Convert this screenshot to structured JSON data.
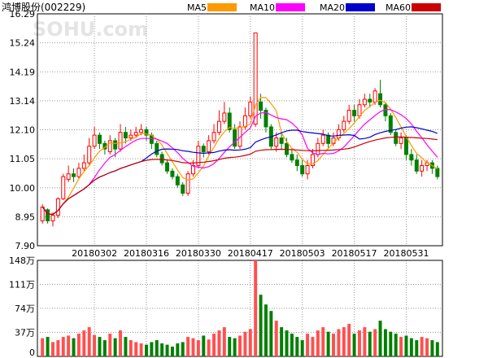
{
  "header": {
    "title": "鸿博股份(002229)",
    "watermark": "SOHU.com"
  },
  "legend": [
    {
      "name": "MA5",
      "color": "#ff9900"
    },
    {
      "name": "MA10",
      "color": "#ff00ff"
    },
    {
      "name": "MA20",
      "color": "#0000cc"
    },
    {
      "name": "MA60",
      "color": "#cc0000"
    }
  ],
  "chart_data": {
    "type": "candlestick",
    "price_axis": {
      "ylim": [
        7.9,
        16.29
      ],
      "ticks": [
        "16.29",
        "15.24",
        "14.19",
        "13.14",
        "12.10",
        "11.05",
        "10.00",
        "8.95",
        "7.90"
      ]
    },
    "volume_axis": {
      "ylim": [
        0,
        148
      ],
      "ticks": [
        "148万",
        "111万",
        "74万",
        "37万",
        "0"
      ]
    },
    "x_ticks": [
      {
        "label": "20180302",
        "index": 10
      },
      {
        "label": "20180316",
        "index": 20
      },
      {
        "label": "20180330",
        "index": 30
      },
      {
        "label": "20180417",
        "index": 40
      },
      {
        "label": "20180503",
        "index": 50
      },
      {
        "label": "20180517",
        "index": 60
      },
      {
        "label": "20180531",
        "index": 70
      }
    ],
    "ohlc": [
      [
        8.8,
        9.3,
        9.4,
        8.7
      ],
      [
        9.2,
        8.8,
        9.25,
        8.7
      ],
      [
        8.8,
        9.0,
        9.1,
        8.6
      ],
      [
        9.0,
        9.6,
        9.65,
        8.9
      ],
      [
        9.6,
        10.4,
        10.5,
        9.55
      ],
      [
        10.3,
        10.5,
        10.8,
        10.2
      ],
      [
        10.5,
        10.4,
        10.7,
        10.2
      ],
      [
        10.4,
        10.7,
        10.9,
        10.3
      ],
      [
        10.7,
        10.9,
        11.2,
        10.6
      ],
      [
        10.9,
        11.5,
        11.8,
        10.8
      ],
      [
        11.5,
        11.9,
        12.2,
        11.4
      ],
      [
        11.9,
        11.6,
        12.0,
        11.4
      ],
      [
        11.6,
        11.4,
        11.7,
        11.2
      ],
      [
        11.3,
        11.7,
        11.9,
        11.2
      ],
      [
        11.7,
        11.4,
        11.8,
        11.1
      ],
      [
        11.4,
        12.0,
        12.3,
        11.3
      ],
      [
        12.0,
        11.8,
        12.2,
        11.6
      ],
      [
        11.8,
        11.9,
        12.1,
        11.7
      ],
      [
        11.9,
        12.0,
        12.2,
        11.8
      ],
      [
        12.0,
        12.1,
        12.3,
        11.9
      ],
      [
        12.1,
        11.9,
        12.2,
        11.7
      ],
      [
        11.9,
        11.6,
        12.0,
        11.4
      ],
      [
        11.6,
        11.2,
        11.7,
        11.1
      ],
      [
        11.2,
        10.9,
        11.3,
        10.8
      ],
      [
        10.9,
        10.6,
        11.0,
        10.5
      ],
      [
        10.6,
        10.4,
        10.7,
        10.3
      ],
      [
        10.4,
        10.1,
        10.5,
        10.0
      ],
      [
        10.1,
        9.8,
        10.2,
        9.7
      ],
      [
        9.8,
        10.5,
        10.6,
        9.7
      ],
      [
        10.5,
        10.8,
        11.0,
        10.4
      ],
      [
        10.8,
        11.5,
        11.7,
        10.7
      ],
      [
        11.5,
        11.3,
        11.6,
        11.1
      ],
      [
        11.3,
        11.7,
        11.9,
        11.2
      ],
      [
        11.7,
        12.0,
        12.3,
        11.6
      ],
      [
        12.0,
        12.4,
        12.8,
        11.9
      ],
      [
        12.4,
        12.7,
        13.1,
        12.3
      ],
      [
        12.7,
        12.1,
        12.9,
        12.0
      ],
      [
        12.1,
        11.5,
        12.3,
        11.4
      ],
      [
        11.5,
        12.2,
        12.4,
        11.4
      ],
      [
        12.2,
        12.6,
        12.9,
        12.1
      ],
      [
        12.6,
        13.1,
        13.3,
        12.5
      ],
      [
        12.3,
        15.6,
        15.6,
        12.2
      ],
      [
        13.1,
        12.8,
        13.4,
        12.5
      ],
      [
        12.8,
        12.2,
        12.9,
        12.0
      ],
      [
        12.2,
        11.5,
        12.3,
        11.4
      ],
      [
        11.5,
        11.8,
        12.0,
        11.3
      ],
      [
        11.8,
        11.6,
        12.0,
        11.4
      ],
      [
        11.6,
        11.2,
        11.8,
        11.1
      ],
      [
        11.2,
        11.0,
        11.4,
        10.9
      ],
      [
        11.0,
        10.8,
        11.2,
        10.6
      ],
      [
        10.8,
        10.5,
        11.0,
        10.4
      ],
      [
        10.5,
        10.8,
        11.0,
        10.3
      ],
      [
        10.8,
        11.2,
        11.4,
        10.7
      ],
      [
        11.2,
        11.6,
        11.8,
        11.1
      ],
      [
        11.6,
        11.9,
        12.1,
        11.5
      ],
      [
        11.9,
        11.6,
        12.0,
        11.4
      ],
      [
        11.6,
        11.8,
        12.0,
        11.5
      ],
      [
        11.8,
        12.1,
        12.3,
        11.7
      ],
      [
        12.1,
        12.4,
        12.6,
        12.0
      ],
      [
        12.4,
        12.8,
        13.0,
        12.3
      ],
      [
        12.8,
        12.6,
        13.0,
        12.4
      ],
      [
        12.6,
        13.0,
        13.2,
        12.5
      ],
      [
        13.0,
        13.2,
        13.4,
        12.9
      ],
      [
        13.2,
        13.1,
        13.4,
        12.9
      ],
      [
        13.1,
        13.5,
        13.6,
        13.0
      ],
      [
        13.4,
        13.0,
        13.9,
        12.9
      ],
      [
        13.0,
        12.6,
        13.1,
        12.4
      ],
      [
        12.6,
        12.0,
        12.7,
        11.9
      ],
      [
        12.0,
        11.6,
        12.1,
        11.5
      ],
      [
        11.6,
        11.8,
        12.0,
        11.4
      ],
      [
        11.8,
        11.2,
        11.9,
        11.0
      ],
      [
        11.2,
        11.0,
        11.4,
        10.8
      ],
      [
        11.0,
        10.6,
        11.2,
        10.5
      ],
      [
        10.6,
        10.8,
        11.0,
        10.4
      ],
      [
        10.8,
        10.9,
        11.0,
        10.6
      ],
      [
        10.9,
        10.7,
        11.0,
        10.5
      ],
      [
        10.7,
        10.4,
        10.8,
        10.3
      ]
    ],
    "volume": [
      28,
      30,
      22,
      25,
      30,
      32,
      28,
      35,
      40,
      45,
      33,
      30,
      25,
      35,
      28,
      40,
      30,
      25,
      22,
      20,
      18,
      22,
      25,
      20,
      18,
      15,
      20,
      22,
      30,
      28,
      25,
      32,
      26,
      35,
      40,
      45,
      30,
      28,
      32,
      38,
      42,
      148,
      95,
      80,
      70,
      55,
      45,
      40,
      35,
      30,
      25,
      35,
      30,
      40,
      45,
      38,
      35,
      42,
      45,
      50,
      35,
      40,
      45,
      38,
      42,
      55,
      42,
      38,
      35,
      30,
      32,
      28,
      25,
      30,
      28,
      25,
      22
    ]
  }
}
